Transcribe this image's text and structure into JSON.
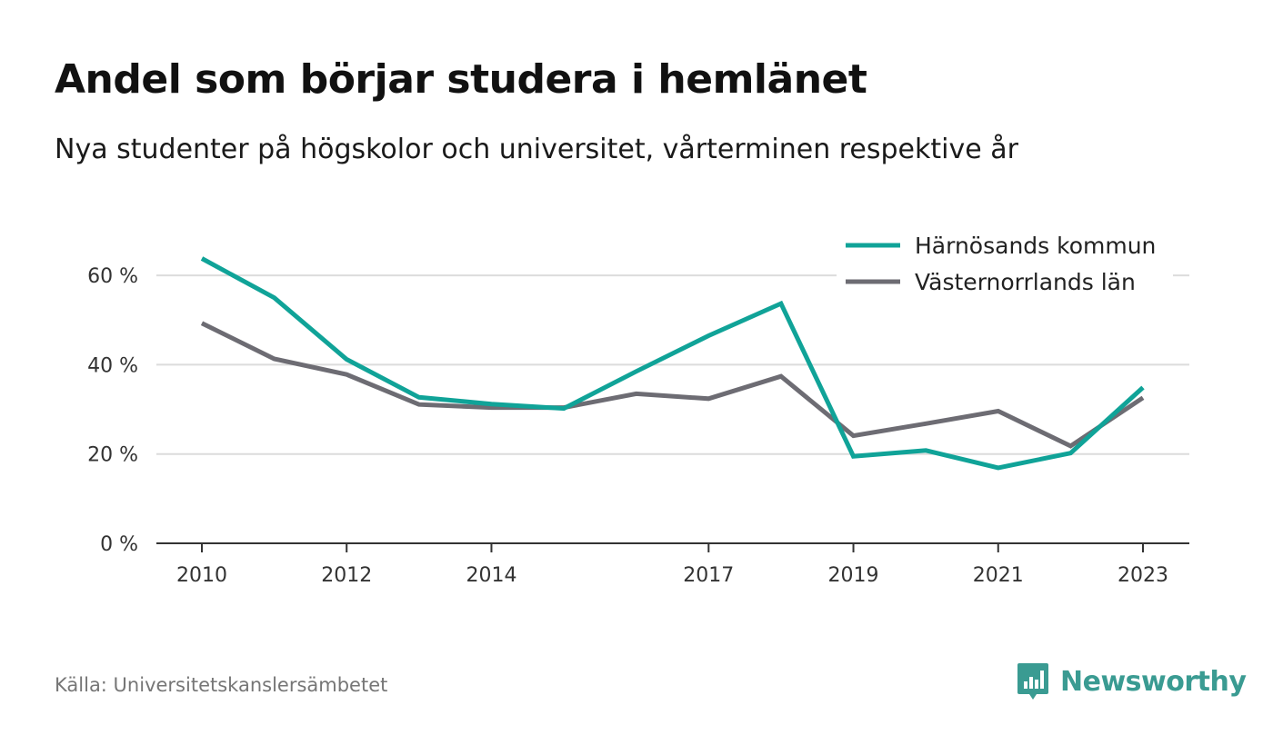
{
  "title": "Andel som börjar studera i hemlänet",
  "subtitle": "Nya studenter på högskolor och universitet, vårterminen respektive år",
  "source": "Källa: Universitetskanslersämbetet",
  "brand": {
    "name": "Newsworthy",
    "icon": "newsworthy-logo-icon",
    "color": "#3a9b92"
  },
  "chart_data": {
    "type": "line",
    "x": [
      2010,
      2011,
      2012,
      2013,
      2014,
      2015,
      2016,
      2017,
      2018,
      2019,
      2020,
      2021,
      2022,
      2023
    ],
    "x_tick_labels": [
      "2010",
      "2012",
      "2014",
      "2017",
      "2019",
      "2021",
      "2023"
    ],
    "ylim": [
      0,
      70
    ],
    "y_ticks": [
      0,
      20,
      40,
      60
    ],
    "y_tick_labels": [
      "0 %",
      "20 %",
      "40 %",
      "60 %"
    ],
    "grid": true,
    "legend_position": "top-right",
    "series": [
      {
        "name": "Härnösands kommun",
        "color": "#10a398",
        "values": [
          63.8,
          55.0,
          41.2,
          32.7,
          31.2,
          30.2,
          38.5,
          46.5,
          53.7,
          19.5,
          20.8,
          16.9,
          20.2,
          34.9
        ]
      },
      {
        "name": "Västernorrlands län",
        "color": "#6d6c73",
        "values": [
          49.3,
          41.3,
          37.8,
          31.1,
          30.4,
          30.4,
          33.5,
          32.4,
          37.4,
          24.1,
          26.8,
          29.6,
          21.8,
          32.6
        ]
      }
    ]
  }
}
